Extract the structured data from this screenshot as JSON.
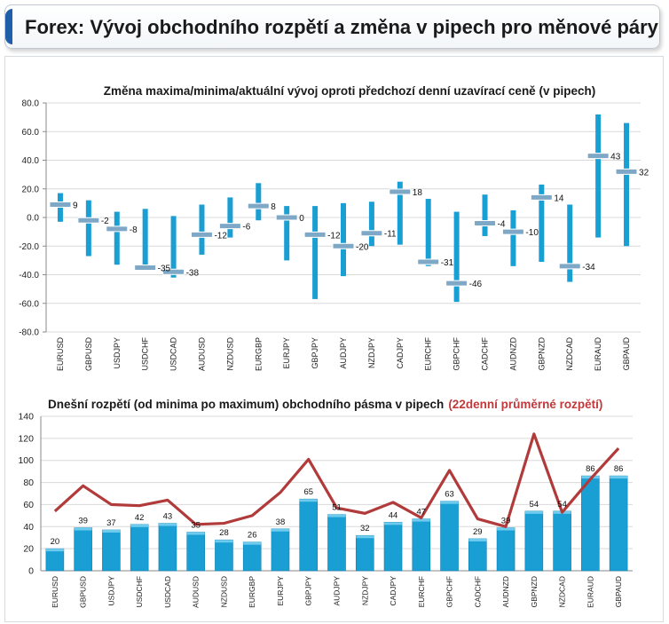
{
  "header": {
    "title": "Forex: Vývoj obchodního rozpětí a změna v pipech pro měnové páry"
  },
  "chart_data": [
    {
      "type": "range",
      "title": "Změna maxima/minima/aktuální vývoj oproti předchozí denní uzavírací ceně (v pipech)",
      "ylim": [
        -80,
        80
      ],
      "yticks": [
        "80.0",
        "60.0",
        "40.0",
        "20.0",
        "0.0",
        "-20.0",
        "-40.0",
        "-60.0",
        "-80.0"
      ],
      "categories": [
        "EURUSD",
        "GBPUSD",
        "USDJPY",
        "USDCHF",
        "USDCAD",
        "AUDUSD",
        "NZDUSD",
        "EURGBP",
        "EURJPY",
        "GBPJPY",
        "AUDJPY",
        "NZDJPY",
        "CADJPY",
        "EURCHF",
        "GBPCHF",
        "CADCHF",
        "AUDNZD",
        "GBPNZD",
        "NZDCAD",
        "EURAUD",
        "GBPAUD"
      ],
      "high": [
        17,
        12,
        4,
        6,
        1,
        9,
        14,
        24,
        8,
        8,
        10,
        11,
        25,
        13,
        4,
        16,
        5,
        23,
        9,
        72,
        66
      ],
      "low": [
        -3,
        -27,
        -33,
        -37,
        -42,
        -26,
        -14,
        -2,
        -30,
        -57,
        -41,
        -20,
        -19,
        -34,
        -59,
        -13,
        -34,
        -31,
        -45,
        -14,
        -20
      ],
      "current": [
        9,
        -2,
        -8,
        -35,
        -38,
        -12,
        -6,
        8,
        0,
        -12,
        -20,
        -11,
        18,
        -31,
        -46,
        -4,
        -10,
        14,
        -34,
        43,
        32
      ],
      "labels": [
        "9",
        "-2",
        "-8",
        "-35",
        "-38",
        "-12",
        "-6",
        "8",
        "0",
        "-12",
        "-20",
        "-11",
        "18",
        "-31",
        "-46",
        "-4",
        "-10",
        "14",
        "-34",
        "43",
        "32"
      ],
      "colors": {
        "range": "#1a9fd4",
        "marker": "#7fa8c6"
      }
    },
    {
      "type": "bar+line",
      "title_main": "Dnešní rozpětí (od minima po maximum) obchodního pásma v pipech",
      "title_highlight": "(22denní průměrné rozpětí)",
      "ylim": [
        0,
        140
      ],
      "yticks": [
        "0",
        "20",
        "40",
        "60",
        "80",
        "100",
        "120",
        "140"
      ],
      "categories": [
        "EURUSD",
        "GBPUSD",
        "USDJPY",
        "USDCHF",
        "USDCAD",
        "AUDUSD",
        "NZDUSD",
        "EURGBP",
        "EURJPY",
        "GBPJPY",
        "AUDJPY",
        "NZDJPY",
        "CADJPY",
        "EURCHF",
        "GBPCHF",
        "CADCHF",
        "AUDNZD",
        "GBPNZD",
        "NZDCAD",
        "EURAUD",
        "GBPAUD"
      ],
      "bar_values": [
        20,
        39,
        37,
        42,
        43,
        35,
        28,
        26,
        38,
        65,
        51,
        32,
        44,
        47,
        63,
        29,
        39,
        54,
        54,
        86,
        86
      ],
      "bar_labels": [
        "20",
        "39",
        "37",
        "42",
        "43",
        "35",
        "28",
        "26",
        "38",
        "65",
        "51",
        "32",
        "44",
        "47",
        "63",
        "29",
        "39",
        "54",
        "54",
        "86",
        "86"
      ],
      "line_values": [
        54,
        77,
        60,
        59,
        64,
        42,
        43,
        50,
        71,
        101,
        57,
        52,
        62,
        48,
        91,
        47,
        40,
        124,
        53,
        83,
        111
      ],
      "colors": {
        "bar": "#1a9fd4",
        "line": "#b13a3a",
        "highlight": "#c0393b"
      }
    }
  ]
}
